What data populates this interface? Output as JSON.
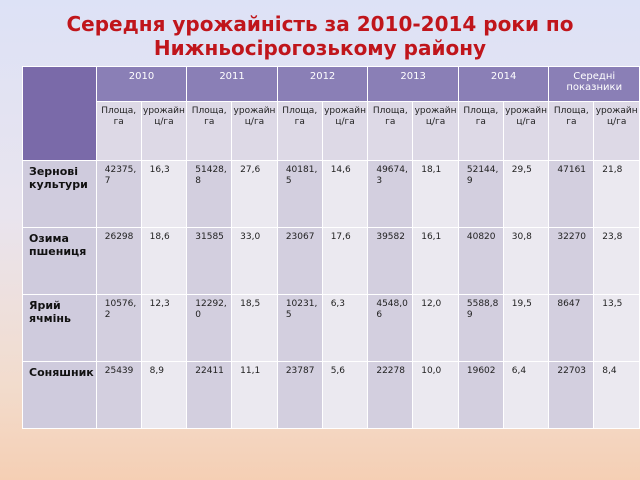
{
  "title_line1": "Середня урожайність за 2010-2014 роки по",
  "title_line2": "Нижньосірогозькому району",
  "years": [
    "2010",
    "2011",
    "2012",
    "2013",
    "2014",
    "Середні показники"
  ],
  "sub_area": "Площа, га",
  "sub_yield": "урожайн ц/га",
  "rows": [
    {
      "label": "Зернові культури",
      "values": [
        "42375,7",
        "16,3",
        "51428,8",
        "27,6",
        "40181,5",
        "14,6",
        "49674,3",
        "18,1",
        "52144,9",
        "29,5",
        "47161",
        "21,8"
      ]
    },
    {
      "label": "Озима пшениця",
      "values": [
        "26298",
        "18,6",
        "31585",
        "33,0",
        "23067",
        "17,6",
        "39582",
        "16,1",
        "40820",
        "30,8",
        "32270",
        "23,8"
      ]
    },
    {
      "label": "Ярий ячмінь",
      "values": [
        "10576,2",
        "12,3",
        "12292,0",
        "18,5",
        "10231,5",
        "6,3",
        "4548,06",
        "12,0",
        "5588,89",
        "19,5",
        "8647",
        "13,5"
      ]
    },
    {
      "label": "Соняшник",
      "values": [
        "25439",
        "8,9",
        "22411",
        "11,1",
        "23787",
        "5,6",
        "22278",
        "10,0",
        "19602",
        "6,4",
        "22703",
        "8,4"
      ]
    }
  ]
}
